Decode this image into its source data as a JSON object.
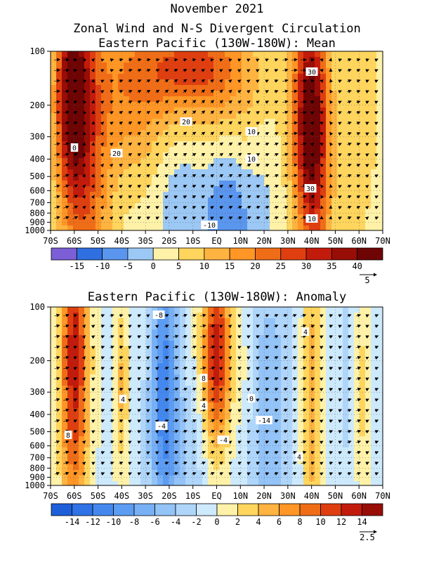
{
  "header": {
    "title": "November 2021",
    "subtitle": "Zonal Wind and N-S Divergent Circulation"
  },
  "chart_data": [
    {
      "type": "heatmap",
      "title": "Eastern Pacific (130W-180W): Mean",
      "x_ticks": [
        "70S",
        "60S",
        "50S",
        "40S",
        "30S",
        "20S",
        "10S",
        "EQ",
        "10N",
        "20N",
        "30N",
        "40N",
        "50N",
        "60N",
        "70N"
      ],
      "y_ticks": [
        "100",
        "200",
        "300",
        "400",
        "500",
        "600",
        "700",
        "800",
        "900",
        "1000"
      ],
      "y_scale": "log-pressure",
      "ylim": [
        1000,
        100
      ],
      "grid": true,
      "colorbar": {
        "levels": [
          "-15",
          "-10",
          "-5",
          "0",
          "5",
          "10",
          "15",
          "20",
          "25",
          "30",
          "35",
          "40"
        ],
        "colors": [
          "#7c5fd6",
          "#2f6fe0",
          "#5a96ee",
          "#9cc8f5",
          "#fff2a8",
          "#ffd55e",
          "#ffb340",
          "#ff9625",
          "#f06d18",
          "#df3f10",
          "#c21b0c",
          "#980d06",
          "#6e0404"
        ]
      },
      "vector_reference": "5",
      "contour_labels": [
        "30",
        "30",
        "20",
        "20",
        "10",
        "10",
        "10",
        "0",
        "-10"
      ],
      "blobs": [
        {
          "x": -61,
          "p": 170,
          "value": 36,
          "sx": 7,
          "sy": 0.55
        },
        {
          "x": -55,
          "p": 500,
          "value": 20,
          "sx": 10,
          "sy": 1.0
        },
        {
          "x": -35,
          "p": 160,
          "value": 16,
          "sx": 18,
          "sy": 0.5
        },
        {
          "x": -10,
          "p": 120,
          "value": 20,
          "sx": 20,
          "sy": 0.25
        },
        {
          "x": 5,
          "p": 200,
          "value": 10,
          "sx": 20,
          "sy": 0.5
        },
        {
          "x": 39,
          "p": 230,
          "value": 36,
          "sx": 7,
          "sy": 0.6
        },
        {
          "x": 42,
          "p": 600,
          "value": 15,
          "sx": 7,
          "sy": 0.9
        },
        {
          "x": 60,
          "p": 300,
          "value": 8,
          "sx": 8,
          "sy": 0.8
        },
        {
          "x": 5,
          "p": 760,
          "value": -13,
          "sx": 11,
          "sy": 0.5
        },
        {
          "x": -15,
          "p": 620,
          "value": -7,
          "sx": 11,
          "sy": 0.45
        },
        {
          "x": 20,
          "p": 480,
          "value": -3,
          "sx": 6,
          "sy": 0.5
        },
        {
          "x": 66,
          "p": 900,
          "value": -3,
          "sx": 4,
          "sy": 0.3
        }
      ],
      "base_value": 2
    },
    {
      "type": "heatmap",
      "title": "Eastern Pacific (130W-180W): Anomaly",
      "x_ticks": [
        "70S",
        "60S",
        "50S",
        "40S",
        "30S",
        "20S",
        "10S",
        "EQ",
        "10N",
        "20N",
        "30N",
        "40N",
        "50N",
        "60N",
        "70N"
      ],
      "y_ticks": [
        "100",
        "200",
        "300",
        "400",
        "500",
        "600",
        "700",
        "800",
        "900",
        "1000"
      ],
      "y_scale": "log-pressure",
      "ylim": [
        1000,
        100
      ],
      "grid": true,
      "colorbar": {
        "levels": [
          "-14",
          "-12",
          "-10",
          "-8",
          "-6",
          "-4",
          "-2",
          "0",
          "2",
          "4",
          "6",
          "8",
          "10",
          "12",
          "14"
        ],
        "colors": [
          "#1d5fd8",
          "#2f73e6",
          "#4488ee",
          "#5c9cf2",
          "#78b0f5",
          "#93c3f7",
          "#afd6fa",
          "#cde9fc",
          "#fff2a8",
          "#ffd55e",
          "#ffb340",
          "#ff9625",
          "#f06d18",
          "#df3f10",
          "#c21b0c",
          "#980d06"
        ]
      },
      "vector_reference": "2.5",
      "contour_labels": [
        "-8",
        "4",
        "8",
        "4",
        "4",
        "-4",
        "4",
        "0",
        "-14",
        "-4",
        "8"
      ],
      "blobs": [
        {
          "x": -60,
          "p": 200,
          "value": 14,
          "sx": 6,
          "sy": 0.9
        },
        {
          "x": -22,
          "p": 250,
          "value": -10,
          "sx": 6,
          "sy": 0.75
        },
        {
          "x": 0,
          "p": 190,
          "value": 14,
          "sx": 6,
          "sy": 0.55
        },
        {
          "x": -40,
          "p": 280,
          "value": 5,
          "sx": 3,
          "sy": 0.5
        },
        {
          "x": 40,
          "p": 350,
          "value": 6,
          "sx": 4,
          "sy": 0.9
        },
        {
          "x": 22,
          "p": 400,
          "value": -5,
          "sx": 10,
          "sy": 0.9
        },
        {
          "x": 55,
          "p": 250,
          "value": -2,
          "sx": 3,
          "sy": 0.7
        },
        {
          "x": 62,
          "p": 300,
          "value": 3,
          "sx": 3,
          "sy": 0.8
        },
        {
          "x": -15,
          "p": 700,
          "value": -3,
          "sx": 15,
          "sy": 0.4
        },
        {
          "x": 12,
          "p": 250,
          "value": 2,
          "sx": 4,
          "sy": 0.5
        }
      ],
      "base_value": -0.6
    }
  ]
}
